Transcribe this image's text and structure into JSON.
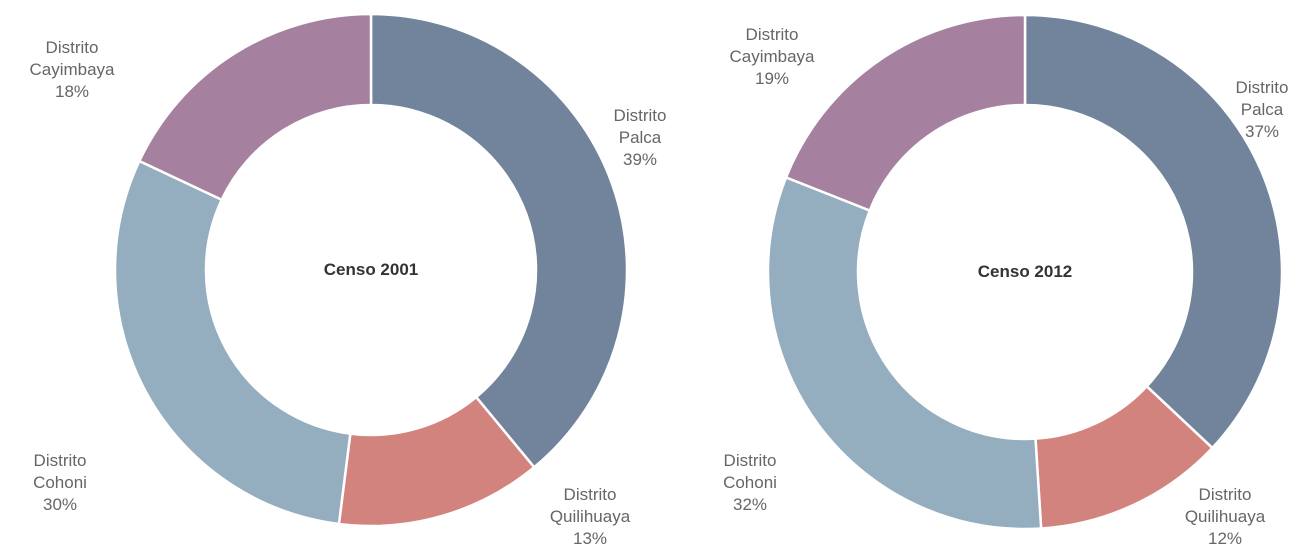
{
  "chart_data": [
    {
      "type": "donut",
      "title": "Censo 2001",
      "categories": [
        "Distrito Palca",
        "Distrito Quilihuaya",
        "Distrito Cohoni",
        "Distrito Cayimbaya"
      ],
      "values": [
        39,
        13,
        30,
        18
      ],
      "value_labels": [
        "39%",
        "13%",
        "30%",
        "18%"
      ],
      "colors": [
        "#71849b",
        "#d3837e",
        "#94aec0",
        "#a6819f"
      ]
    },
    {
      "type": "donut",
      "title": "Censo 2012",
      "categories": [
        "Distrito Palca",
        "Distrito Quilihuaya",
        "Distrito Cohoni",
        "Distrito Cayimbaya"
      ],
      "values": [
        37,
        12,
        32,
        19
      ],
      "value_labels": [
        "37%",
        "12%",
        "32%",
        "19%"
      ],
      "colors": [
        "#71849b",
        "#d3837e",
        "#94aec0",
        "#a6819f"
      ]
    }
  ]
}
